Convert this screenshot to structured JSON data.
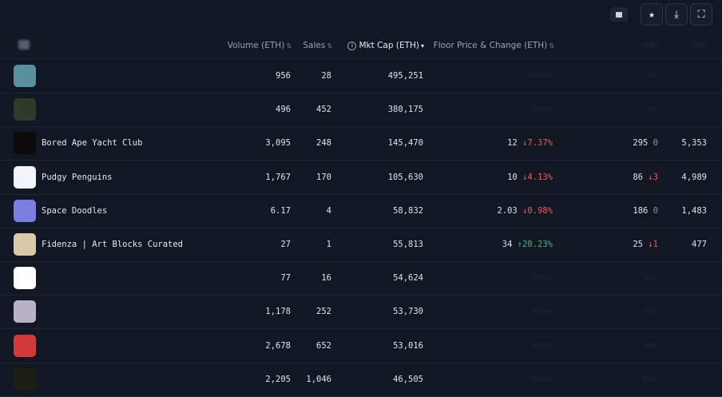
{
  "toolbar": {
    "left_text": "··",
    "mid_text": "·· · ··",
    "mid_text2": "· · ·",
    "star_icon": "★",
    "download_icon": "⤓",
    "fullscreen_icon": "⛶"
  },
  "table": {
    "headers": {
      "volume": "Volume (ETH)",
      "sales": "Sales",
      "mkt_cap": "Mkt Cap (ETH)",
      "floor": "Floor Price & Change (ETH)",
      "col7": "·····",
      "col8": "·····"
    },
    "rows": [
      {
        "name": "",
        "volume": "956",
        "sales": "28",
        "mkt_cap": "495,251",
        "floor": "·····",
        "floor_change": "",
        "col7": "··",
        "col7_change": "",
        "col8": "",
        "avatar_color": "#5a8fa0"
      },
      {
        "name": "",
        "volume": "496",
        "sales": "452",
        "mkt_cap": "380,175",
        "floor": "····",
        "floor_change": "",
        "col7": "··",
        "col7_change": "",
        "col8": "",
        "avatar_color": "#2f3a2a"
      },
      {
        "name": "Bored Ape Yacht Club",
        "volume": "3,095",
        "sales": "248",
        "mkt_cap": "145,470",
        "floor": "12",
        "floor_change": "↓7.37%",
        "floor_dir": "down",
        "col7": "295",
        "col7_change": "0",
        "col7_dir": "zero",
        "col8": "5,353",
        "avatar_color": "#0b0b0b"
      },
      {
        "name": "Pudgy Penguins",
        "volume": "1,767",
        "sales": "170",
        "mkt_cap": "105,630",
        "floor": "10",
        "floor_change": "↓4.13%",
        "floor_dir": "down",
        "col7": "86",
        "col7_change": "↓3",
        "col7_dir": "down",
        "col8": "4,989",
        "avatar_color": "#f2f4f7"
      },
      {
        "name": "Space Doodles",
        "volume": "6.17",
        "sales": "4",
        "mkt_cap": "58,832",
        "floor": "2.03",
        "floor_change": "↓0.98%",
        "floor_dir": "down",
        "col7": "186",
        "col7_change": "0",
        "col7_dir": "zero",
        "col8": "1,483",
        "avatar_color": "#7a7ee0"
      },
      {
        "name": "Fidenza | Art Blocks Curated",
        "volume": "27",
        "sales": "1",
        "mkt_cap": "55,813",
        "floor": "34",
        "floor_change": "↑20.23%",
        "floor_dir": "up",
        "col7": "25",
        "col7_change": "↓1",
        "col7_dir": "down",
        "col8": "477",
        "avatar_color": "#d9c9a8"
      },
      {
        "name": "",
        "volume": "77",
        "sales": "16",
        "mkt_cap": "54,624",
        "floor": "····",
        "floor_change": "",
        "col7": "···",
        "col7_change": "",
        "col8": "",
        "avatar_color": "#ffffff"
      },
      {
        "name": "",
        "volume": "1,178",
        "sales": "252",
        "mkt_cap": "53,730",
        "floor": "····",
        "floor_change": "",
        "col7": "···",
        "col7_change": "",
        "col8": "",
        "avatar_color": "#b7b3c4"
      },
      {
        "name": "",
        "volume": "2,678",
        "sales": "652",
        "mkt_cap": "53,016",
        "floor": "····",
        "floor_change": "",
        "col7": "···",
        "col7_change": "",
        "col8": "",
        "avatar_color": "#d23a3a"
      },
      {
        "name": "",
        "volume": "2,205",
        "sales": "1,046",
        "mkt_cap": "46,505",
        "floor": "····",
        "floor_change": "",
        "col7": "···",
        "col7_change": "",
        "col8": "",
        "avatar_color": "#1a1f12"
      }
    ]
  }
}
